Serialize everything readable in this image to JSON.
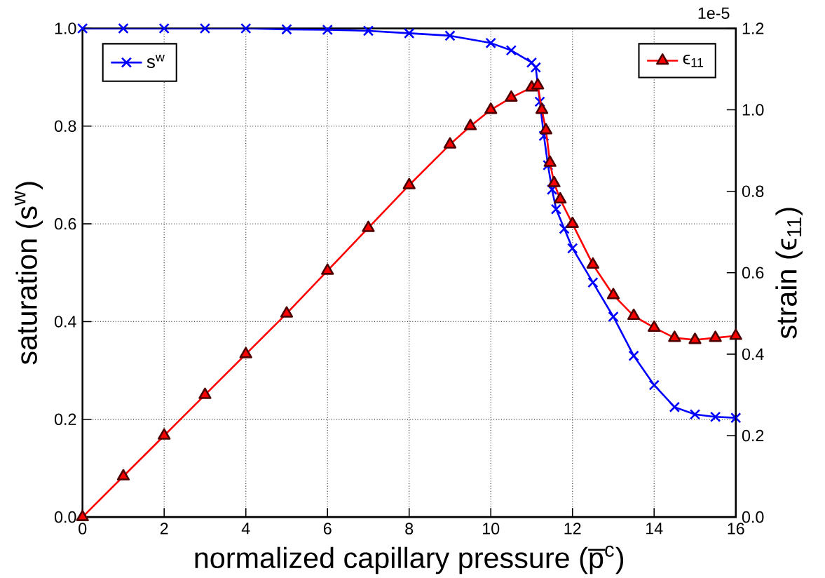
{
  "chart_data": {
    "type": "line",
    "xlabel": "normalized capillary pressure (p̅$^{c}$)",
    "ylabel": "saturation (s$^{w}$)",
    "y2label": "strain (ϵ$_{11}$)",
    "annotations": [
      "1e-5"
    ],
    "xlim": [
      0,
      16
    ],
    "xticks": [
      0,
      2,
      4,
      6,
      8,
      10,
      12,
      14,
      16
    ],
    "ylim": [
      0,
      1.0
    ],
    "yticks": [
      {
        "value": 0,
        "label": "0.0"
      },
      0.2,
      0.4,
      0.6,
      0.8,
      {
        "value": 1.0,
        "label": "1.0"
      }
    ],
    "y2lim": [
      0,
      1.2
    ],
    "y2ticks": [
      {
        "value": 0,
        "label": "0.0"
      },
      0.2,
      0.4,
      0.6,
      0.8,
      {
        "value": 1.0,
        "label": "1.0"
      },
      1.2
    ],
    "grid": true,
    "legend": "top",
    "series": [
      {
        "name": "s$^{w}$",
        "color": "#0000ff",
        "marker": "cross",
        "x": [
          0,
          1,
          2,
          3,
          4,
          5,
          6,
          7,
          8,
          9,
          10,
          10.5,
          11,
          11.1,
          11.2,
          11.3,
          11.4,
          11.5,
          11.6,
          11.8,
          12,
          12.5,
          13,
          13.5,
          14,
          14.5,
          15,
          15.5,
          16
        ],
        "values": [
          1.0,
          1.0,
          1.0,
          1.0,
          1.0,
          0.998,
          0.997,
          0.995,
          0.99,
          0.985,
          0.97,
          0.955,
          0.93,
          0.92,
          0.85,
          0.78,
          0.72,
          0.67,
          0.63,
          0.59,
          0.55,
          0.48,
          0.41,
          0.33,
          0.27,
          0.225,
          0.21,
          0.205,
          0.203
        ]
      },
      {
        "name": "ϵ$_{11}$",
        "color": "#ff0000",
        "marker": "triangle",
        "axis": "y2",
        "x": [
          0,
          1,
          2,
          3,
          4,
          5,
          6,
          7,
          8,
          9,
          9.5,
          10,
          10.5,
          11,
          11.15,
          11.25,
          11.35,
          11.45,
          11.55,
          11.7,
          12,
          12.5,
          13,
          13.5,
          14,
          14.5,
          15,
          15.5,
          16
        ],
        "values": [
          0,
          0.1,
          0.2,
          0.3,
          0.4,
          0.5,
          0.605,
          0.71,
          0.815,
          0.915,
          0.96,
          1.0,
          1.03,
          1.055,
          1.06,
          1.0,
          0.95,
          0.87,
          0.82,
          0.78,
          0.72,
          0.62,
          0.545,
          0.494,
          0.465,
          0.44,
          0.435,
          0.44,
          0.445
        ]
      }
    ]
  }
}
